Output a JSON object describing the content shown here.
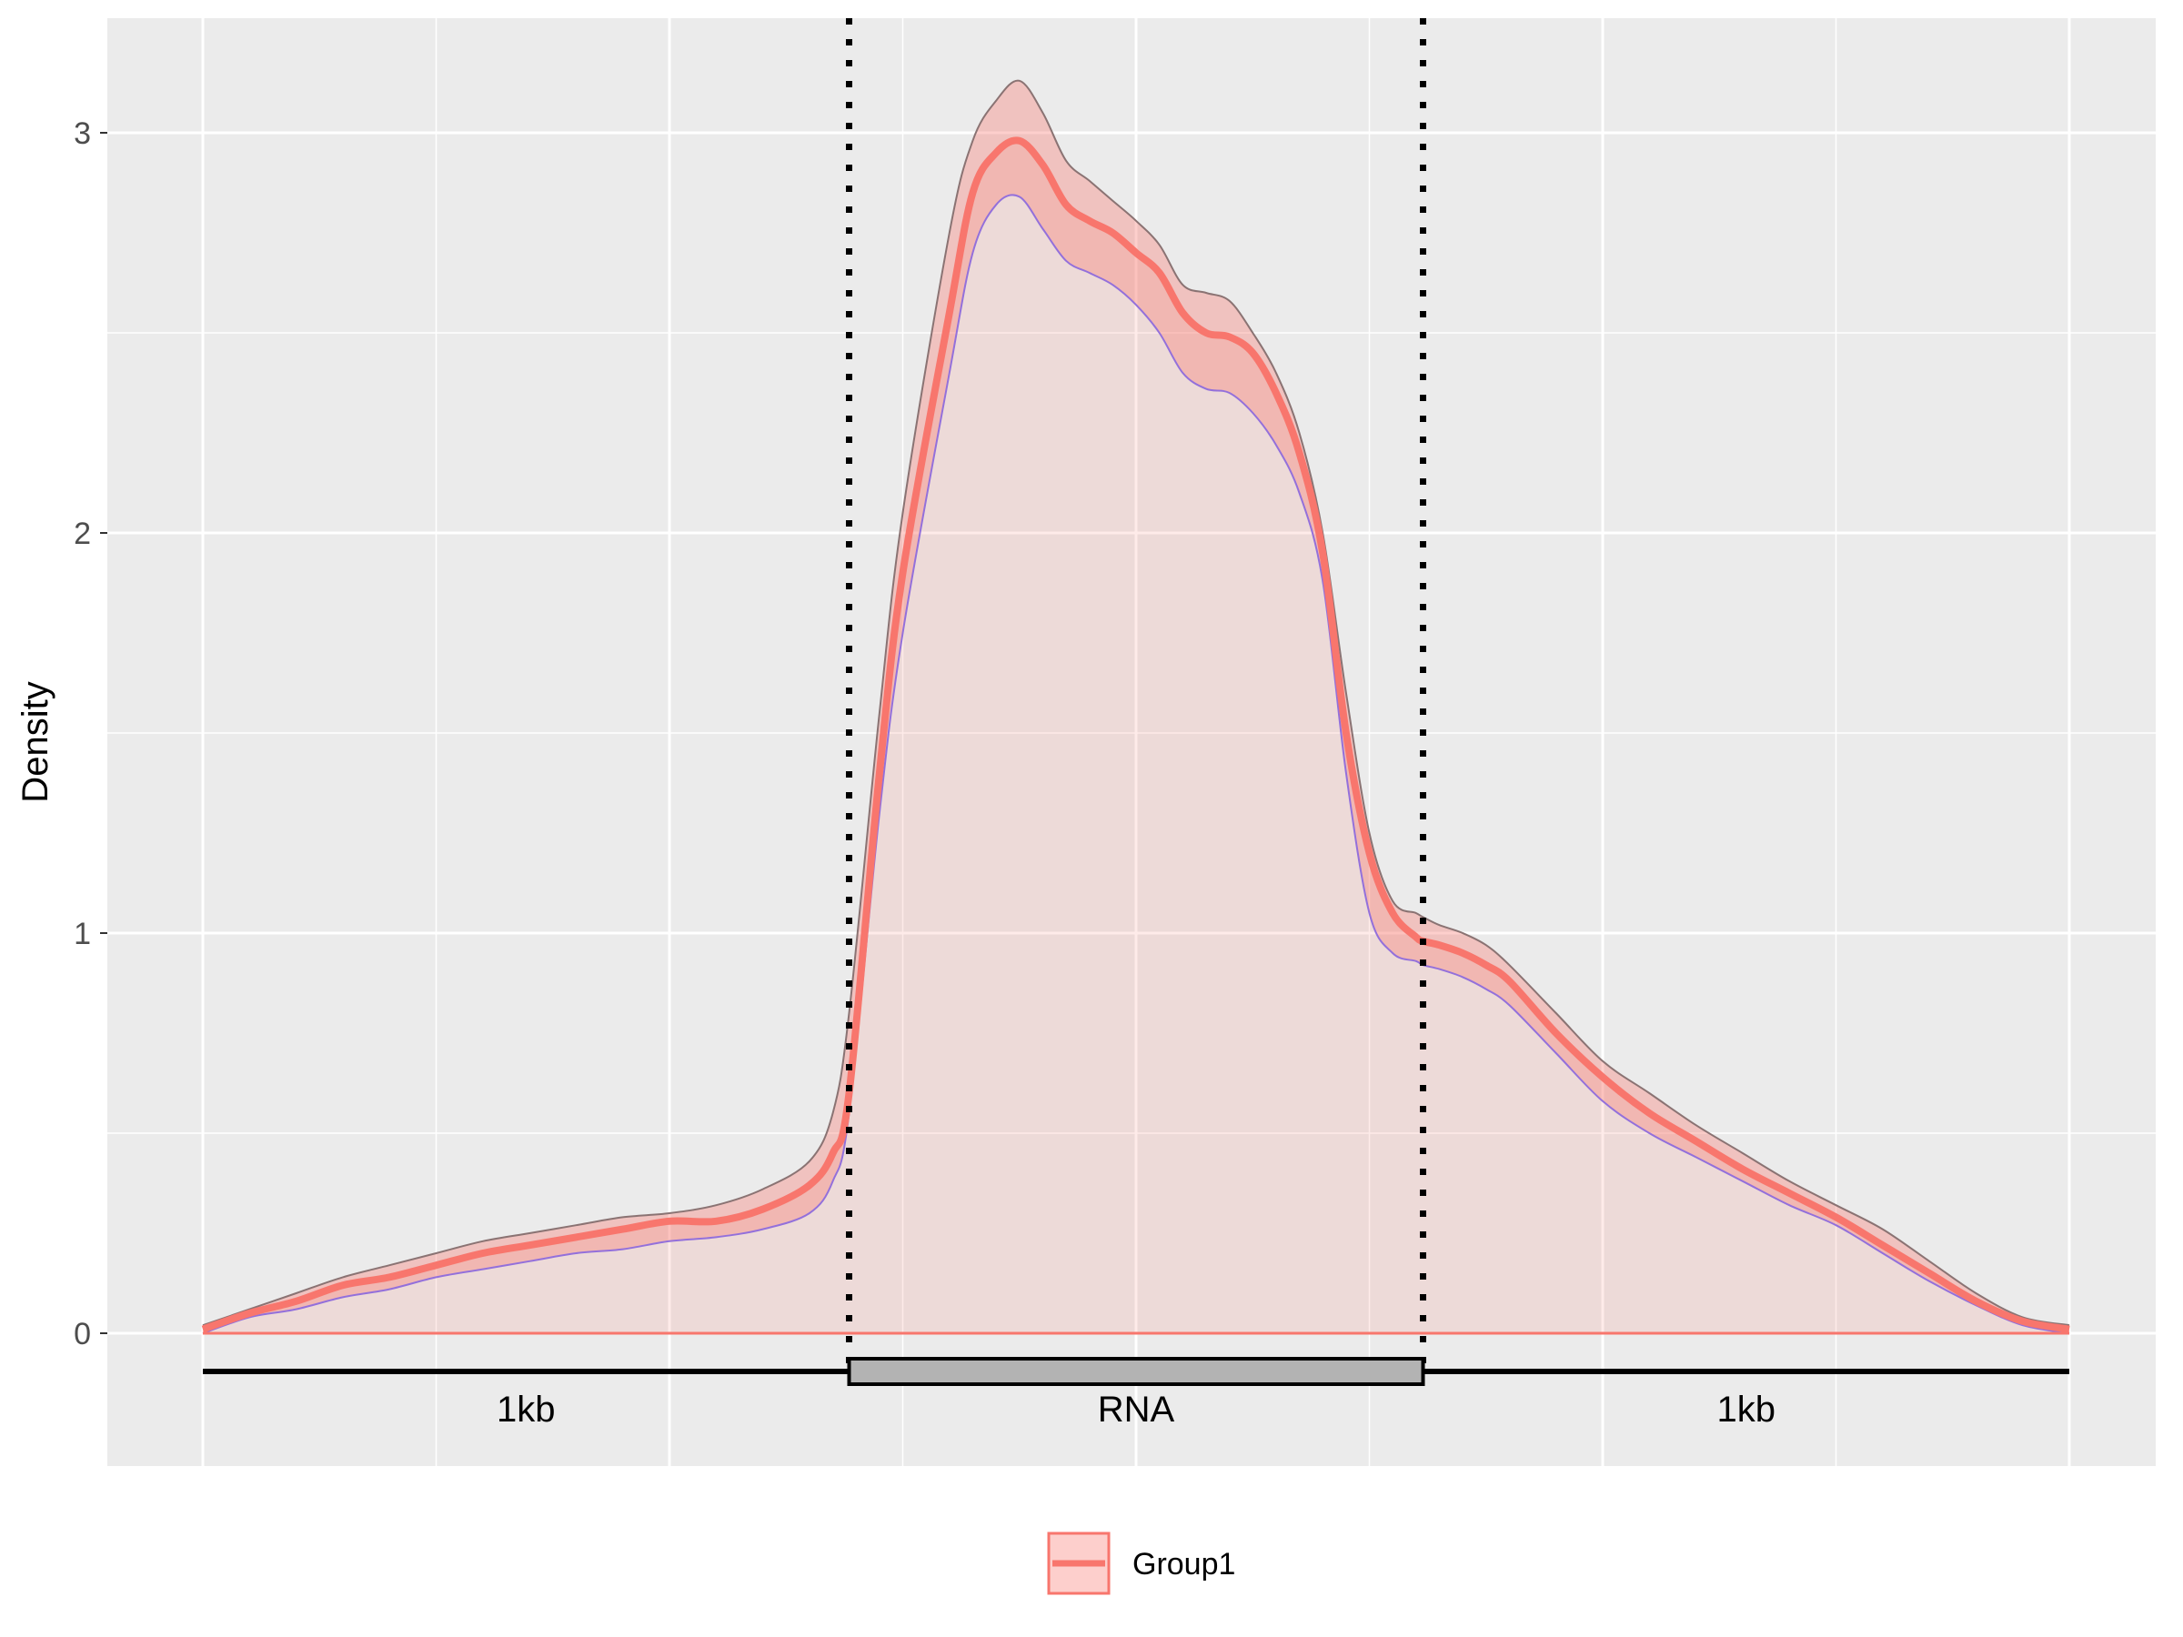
{
  "chart_data": {
    "type": "area",
    "title": "",
    "xlabel": "",
    "ylabel": "Density",
    "xlim": [
      0,
      4
    ],
    "ylim": [
      -0.3,
      3.3
    ],
    "yticks": [
      0,
      1,
      2,
      3
    ],
    "grid": true,
    "legend_position": "bottom",
    "regions": [
      {
        "label": "1kb",
        "start": 0,
        "end": 1.385
      },
      {
        "label": "RNA",
        "start": 1.385,
        "end": 2.615
      },
      {
        "label": "1kb",
        "start": 2.615,
        "end": 4
      }
    ],
    "boundaries": [
      1.385,
      2.615
    ],
    "series": [
      {
        "name": "Group1",
        "color": "#F8766D",
        "x": [
          0,
          0.1,
          0.2,
          0.3,
          0.4,
          0.5,
          0.6,
          0.7,
          0.8,
          0.9,
          1.0,
          1.1,
          1.2,
          1.3,
          1.35,
          1.385,
          1.45,
          1.5,
          1.6,
          1.65,
          1.7,
          1.75,
          1.8,
          1.85,
          1.9,
          1.95,
          2.0,
          2.05,
          2.1,
          2.15,
          2.2,
          2.25,
          2.3,
          2.35,
          2.4,
          2.45,
          2.5,
          2.55,
          2.6,
          2.615,
          2.65,
          2.7,
          2.75,
          2.8,
          2.9,
          3.0,
          3.1,
          3.2,
          3.3,
          3.4,
          3.5,
          3.6,
          3.7,
          3.8,
          3.9,
          4.0
        ],
        "y": [
          0.01,
          0.05,
          0.08,
          0.12,
          0.14,
          0.17,
          0.2,
          0.22,
          0.24,
          0.26,
          0.28,
          0.28,
          0.31,
          0.37,
          0.45,
          0.6,
          1.4,
          1.9,
          2.55,
          2.85,
          2.95,
          2.98,
          2.92,
          2.82,
          2.78,
          2.75,
          2.7,
          2.65,
          2.55,
          2.5,
          2.49,
          2.45,
          2.35,
          2.2,
          1.95,
          1.5,
          1.2,
          1.05,
          0.99,
          0.98,
          0.97,
          0.95,
          0.92,
          0.88,
          0.75,
          0.64,
          0.55,
          0.48,
          0.41,
          0.35,
          0.29,
          0.22,
          0.15,
          0.08,
          0.03,
          0.01
        ],
        "upper": [
          0.02,
          0.06,
          0.1,
          0.14,
          0.17,
          0.2,
          0.23,
          0.25,
          0.27,
          0.29,
          0.3,
          0.32,
          0.36,
          0.43,
          0.55,
          0.8,
          1.55,
          2.05,
          2.75,
          2.98,
          3.08,
          3.13,
          3.05,
          2.93,
          2.88,
          2.83,
          2.78,
          2.72,
          2.62,
          2.6,
          2.58,
          2.5,
          2.4,
          2.25,
          2.0,
          1.6,
          1.25,
          1.08,
          1.05,
          1.04,
          1.02,
          1.0,
          0.97,
          0.92,
          0.8,
          0.68,
          0.6,
          0.52,
          0.45,
          0.38,
          0.32,
          0.26,
          0.18,
          0.1,
          0.04,
          0.02
        ],
        "lower": [
          0.0,
          0.04,
          0.06,
          0.09,
          0.11,
          0.14,
          0.16,
          0.18,
          0.2,
          0.21,
          0.23,
          0.24,
          0.26,
          0.3,
          0.38,
          0.55,
          1.3,
          1.75,
          2.4,
          2.7,
          2.82,
          2.84,
          2.76,
          2.68,
          2.65,
          2.62,
          2.57,
          2.5,
          2.4,
          2.36,
          2.35,
          2.3,
          2.22,
          2.1,
          1.88,
          1.4,
          1.05,
          0.95,
          0.93,
          0.92,
          0.91,
          0.89,
          0.86,
          0.82,
          0.7,
          0.58,
          0.5,
          0.44,
          0.38,
          0.32,
          0.27,
          0.2,
          0.13,
          0.07,
          0.02,
          0.0
        ]
      }
    ]
  }
}
